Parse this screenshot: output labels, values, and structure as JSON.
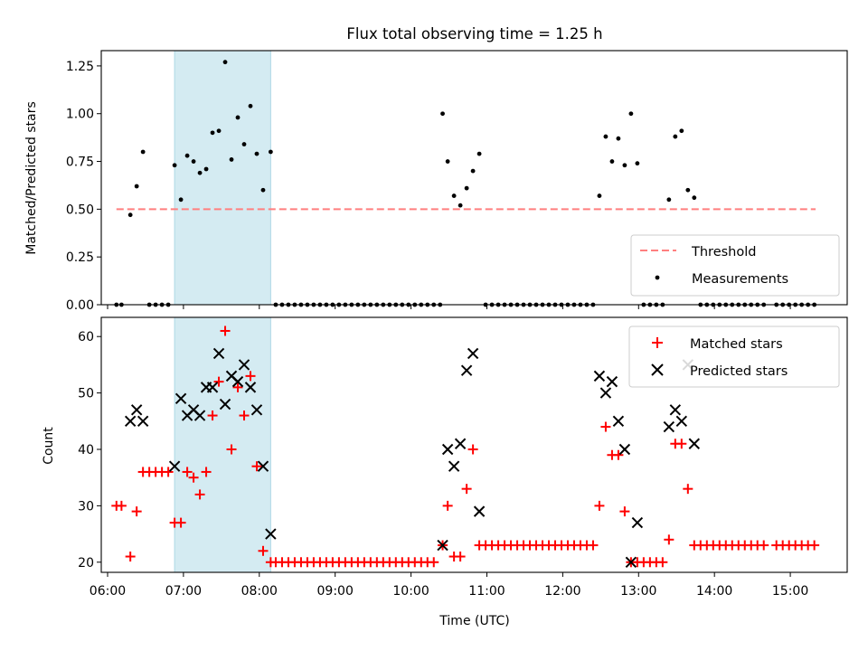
{
  "chart_data": [
    {
      "type": "scatter",
      "title": "Flux total observing time = 1.25 h",
      "xlabel": "",
      "ylabel": "Matched/Predicted stars",
      "xlim": [
        "05:55",
        "15:45"
      ],
      "ylim": [
        0,
        1.33
      ],
      "yticks": [
        "0.00",
        "0.25",
        "0.50",
        "0.75",
        "1.00",
        "1.25"
      ],
      "grid": false,
      "legend_position": "lower-right",
      "highlight_span": {
        "x0": "06:53",
        "x1": "08:09",
        "color": "#add8e6"
      },
      "threshold": {
        "name": "Threshold",
        "value": 0.5,
        "x0": "06:07",
        "x1": "15:20",
        "color": "#ff7f7f"
      },
      "measurements": {
        "name": "Measurements",
        "color": "#000000",
        "points": [
          [
            "06:07",
            0
          ],
          [
            "06:11",
            0
          ],
          [
            "06:18",
            0.47
          ],
          [
            "06:23",
            0.62
          ],
          [
            "06:28",
            0.8
          ],
          [
            "06:33",
            0
          ],
          [
            "06:38",
            0
          ],
          [
            "06:43",
            0
          ],
          [
            "06:48",
            0
          ],
          [
            "06:53",
            0.73
          ],
          [
            "06:58",
            0.55
          ],
          [
            "07:03",
            0.78
          ],
          [
            "07:08",
            0.75
          ],
          [
            "07:13",
            0.69
          ],
          [
            "07:18",
            0.71
          ],
          [
            "07:23",
            0.9
          ],
          [
            "07:28",
            0.91
          ],
          [
            "07:33",
            1.27
          ],
          [
            "07:38",
            0.76
          ],
          [
            "07:43",
            0.98
          ],
          [
            "07:48",
            0.84
          ],
          [
            "07:53",
            1.04
          ],
          [
            "07:58",
            0.79
          ],
          [
            "08:03",
            0.6
          ],
          [
            "08:09",
            0.8
          ],
          [
            "08:13",
            0
          ],
          [
            "08:18",
            0
          ],
          [
            "08:23",
            0
          ],
          [
            "08:28",
            0
          ],
          [
            "08:33",
            0
          ],
          [
            "08:38",
            0
          ],
          [
            "08:43",
            0
          ],
          [
            "08:48",
            0
          ],
          [
            "08:53",
            0
          ],
          [
            "08:58",
            0
          ],
          [
            "09:03",
            0
          ],
          [
            "09:08",
            0
          ],
          [
            "09:13",
            0
          ],
          [
            "09:18",
            0
          ],
          [
            "09:23",
            0
          ],
          [
            "09:28",
            0
          ],
          [
            "09:33",
            0
          ],
          [
            "09:38",
            0
          ],
          [
            "09:43",
            0
          ],
          [
            "09:48",
            0
          ],
          [
            "09:53",
            0
          ],
          [
            "09:58",
            0
          ],
          [
            "10:03",
            0
          ],
          [
            "10:08",
            0
          ],
          [
            "10:13",
            0
          ],
          [
            "10:18",
            0
          ],
          [
            "10:23",
            0
          ],
          [
            "10:25",
            1.0
          ],
          [
            "10:29",
            0.75
          ],
          [
            "10:34",
            0.57
          ],
          [
            "10:39",
            0.52
          ],
          [
            "10:44",
            0.61
          ],
          [
            "10:49",
            0.7
          ],
          [
            "10:54",
            0.79
          ],
          [
            "10:59",
            0
          ],
          [
            "11:04",
            0
          ],
          [
            "11:09",
            0
          ],
          [
            "11:14",
            0
          ],
          [
            "11:19",
            0
          ],
          [
            "11:24",
            0
          ],
          [
            "11:29",
            0
          ],
          [
            "11:34",
            0
          ],
          [
            "11:39",
            0
          ],
          [
            "11:44",
            0
          ],
          [
            "11:49",
            0
          ],
          [
            "11:54",
            0
          ],
          [
            "11:59",
            0
          ],
          [
            "12:04",
            0
          ],
          [
            "12:09",
            0
          ],
          [
            "12:14",
            0
          ],
          [
            "12:19",
            0
          ],
          [
            "12:24",
            0
          ],
          [
            "12:29",
            0.57
          ],
          [
            "12:34",
            0.88
          ],
          [
            "12:39",
            0.75
          ],
          [
            "12:44",
            0.87
          ],
          [
            "12:49",
            0.73
          ],
          [
            "12:54",
            1.0
          ],
          [
            "12:59",
            0.74
          ],
          [
            "13:04",
            0
          ],
          [
            "13:09",
            0
          ],
          [
            "13:14",
            0
          ],
          [
            "13:19",
            0
          ],
          [
            "13:24",
            0.55
          ],
          [
            "13:29",
            0.88
          ],
          [
            "13:34",
            0.91
          ],
          [
            "13:39",
            0.6
          ],
          [
            "13:44",
            0.56
          ],
          [
            "13:49",
            0
          ],
          [
            "13:54",
            0
          ],
          [
            "13:59",
            0
          ],
          [
            "14:04",
            0
          ],
          [
            "14:09",
            0
          ],
          [
            "14:14",
            0
          ],
          [
            "14:19",
            0
          ],
          [
            "14:24",
            0
          ],
          [
            "14:29",
            0
          ],
          [
            "14:34",
            0
          ],
          [
            "14:39",
            0
          ],
          [
            "14:49",
            0
          ],
          [
            "14:54",
            0
          ],
          [
            "14:59",
            0
          ],
          [
            "15:04",
            0
          ],
          [
            "15:09",
            0
          ],
          [
            "15:14",
            0
          ],
          [
            "15:19",
            0
          ]
        ]
      },
      "legend": [
        "Threshold",
        "Measurements"
      ]
    },
    {
      "type": "scatter",
      "title": "",
      "xlabel": "Time (UTC)",
      "ylabel": "Count",
      "xlim": [
        "05:55",
        "15:45"
      ],
      "ylim": [
        18.2,
        63.4
      ],
      "yticks": [
        "20",
        "30",
        "40",
        "50",
        "60"
      ],
      "xticks": [
        "06:00",
        "07:00",
        "08:00",
        "09:00",
        "10:00",
        "11:00",
        "12:00",
        "13:00",
        "14:00",
        "15:00"
      ],
      "grid": false,
      "legend_position": "upper-right",
      "highlight_span": {
        "x0": "06:53",
        "x1": "08:09",
        "color": "#add8e6"
      },
      "series": [
        {
          "name": "Matched stars",
          "marker": "plus",
          "color": "#ff0000",
          "points": [
            [
              "06:07",
              30
            ],
            [
              "06:11",
              30
            ],
            [
              "06:18",
              21
            ],
            [
              "06:23",
              29
            ],
            [
              "06:28",
              36
            ],
            [
              "06:33",
              36
            ],
            [
              "06:38",
              36
            ],
            [
              "06:43",
              36
            ],
            [
              "06:48",
              36
            ],
            [
              "06:53",
              27
            ],
            [
              "06:58",
              27
            ],
            [
              "07:03",
              36
            ],
            [
              "07:08",
              35
            ],
            [
              "07:13",
              32
            ],
            [
              "07:18",
              36
            ],
            [
              "07:23",
              46
            ],
            [
              "07:28",
              52
            ],
            [
              "07:33",
              61
            ],
            [
              "07:38",
              40
            ],
            [
              "07:43",
              51
            ],
            [
              "07:48",
              46
            ],
            [
              "07:53",
              53
            ],
            [
              "07:58",
              37
            ],
            [
              "08:03",
              22
            ],
            [
              "08:09",
              20
            ],
            [
              "08:13",
              20
            ],
            [
              "08:18",
              20
            ],
            [
              "08:23",
              20
            ],
            [
              "08:28",
              20
            ],
            [
              "08:33",
              20
            ],
            [
              "08:38",
              20
            ],
            [
              "08:43",
              20
            ],
            [
              "08:48",
              20
            ],
            [
              "08:53",
              20
            ],
            [
              "08:58",
              20
            ],
            [
              "09:03",
              20
            ],
            [
              "09:08",
              20
            ],
            [
              "09:13",
              20
            ],
            [
              "09:18",
              20
            ],
            [
              "09:23",
              20
            ],
            [
              "09:28",
              20
            ],
            [
              "09:33",
              20
            ],
            [
              "09:38",
              20
            ],
            [
              "09:43",
              20
            ],
            [
              "09:48",
              20
            ],
            [
              "09:53",
              20
            ],
            [
              "09:58",
              20
            ],
            [
              "10:03",
              20
            ],
            [
              "10:08",
              20
            ],
            [
              "10:13",
              20
            ],
            [
              "10:18",
              20
            ],
            [
              "10:25",
              23
            ],
            [
              "10:29",
              30
            ],
            [
              "10:34",
              21
            ],
            [
              "10:39",
              21
            ],
            [
              "10:44",
              33
            ],
            [
              "10:49",
              40
            ],
            [
              "10:54",
              23
            ],
            [
              "10:59",
              23
            ],
            [
              "11:04",
              23
            ],
            [
              "11:09",
              23
            ],
            [
              "11:14",
              23
            ],
            [
              "11:19",
              23
            ],
            [
              "11:24",
              23
            ],
            [
              "11:29",
              23
            ],
            [
              "11:34",
              23
            ],
            [
              "11:39",
              23
            ],
            [
              "11:44",
              23
            ],
            [
              "11:49",
              23
            ],
            [
              "11:54",
              23
            ],
            [
              "11:59",
              23
            ],
            [
              "12:04",
              23
            ],
            [
              "12:09",
              23
            ],
            [
              "12:14",
              23
            ],
            [
              "12:19",
              23
            ],
            [
              "12:24",
              23
            ],
            [
              "12:29",
              30
            ],
            [
              "12:34",
              44
            ],
            [
              "12:39",
              39
            ],
            [
              "12:44",
              39
            ],
            [
              "12:49",
              29
            ],
            [
              "12:54",
              20
            ],
            [
              "12:59",
              20
            ],
            [
              "13:04",
              20
            ],
            [
              "13:09",
              20
            ],
            [
              "13:14",
              20
            ],
            [
              "13:19",
              20
            ],
            [
              "13:24",
              24
            ],
            [
              "13:29",
              41
            ],
            [
              "13:34",
              41
            ],
            [
              "13:39",
              33
            ],
            [
              "13:44",
              23
            ],
            [
              "13:49",
              23
            ],
            [
              "13:54",
              23
            ],
            [
              "13:59",
              23
            ],
            [
              "14:04",
              23
            ],
            [
              "14:09",
              23
            ],
            [
              "14:14",
              23
            ],
            [
              "14:19",
              23
            ],
            [
              "14:24",
              23
            ],
            [
              "14:29",
              23
            ],
            [
              "14:34",
              23
            ],
            [
              "14:39",
              23
            ],
            [
              "14:49",
              23
            ],
            [
              "14:54",
              23
            ],
            [
              "14:59",
              23
            ],
            [
              "15:04",
              23
            ],
            [
              "15:09",
              23
            ],
            [
              "15:14",
              23
            ],
            [
              "15:19",
              23
            ]
          ]
        },
        {
          "name": "Predicted stars",
          "marker": "x",
          "color": "#000000",
          "points": [
            [
              "06:18",
              45
            ],
            [
              "06:23",
              47
            ],
            [
              "06:28",
              45
            ],
            [
              "06:53",
              37
            ],
            [
              "06:58",
              49
            ],
            [
              "07:03",
              46
            ],
            [
              "07:08",
              47
            ],
            [
              "07:13",
              46
            ],
            [
              "07:18",
              51
            ],
            [
              "07:23",
              51
            ],
            [
              "07:28",
              57
            ],
            [
              "07:33",
              48
            ],
            [
              "07:38",
              53
            ],
            [
              "07:43",
              52
            ],
            [
              "07:48",
              55
            ],
            [
              "07:53",
              51
            ],
            [
              "07:58",
              47
            ],
            [
              "08:03",
              37
            ],
            [
              "08:09",
              25
            ],
            [
              "10:25",
              23
            ],
            [
              "10:29",
              40
            ],
            [
              "10:34",
              37
            ],
            [
              "10:39",
              41
            ],
            [
              "10:44",
              54
            ],
            [
              "10:49",
              57
            ],
            [
              "10:54",
              29
            ],
            [
              "12:29",
              53
            ],
            [
              "12:34",
              50
            ],
            [
              "12:39",
              52
            ],
            [
              "12:44",
              45
            ],
            [
              "12:49",
              40
            ],
            [
              "12:54",
              20
            ],
            [
              "12:59",
              27
            ],
            [
              "13:24",
              44
            ],
            [
              "13:29",
              47
            ],
            [
              "13:34",
              45
            ],
            [
              "13:39",
              55
            ],
            [
              "13:44",
              41
            ]
          ]
        }
      ],
      "legend": [
        "Matched stars",
        "Predicted stars"
      ]
    }
  ]
}
